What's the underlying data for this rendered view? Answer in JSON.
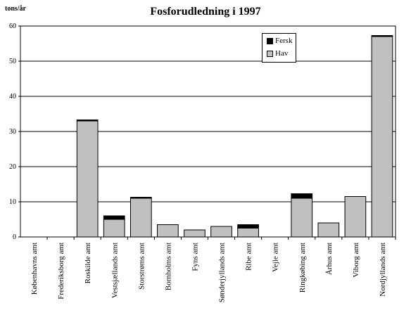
{
  "chart_data": {
    "type": "bar",
    "stacked": true,
    "title": "Fosforudledning i 1997",
    "ylabel": "tons/år",
    "xlabel": "",
    "ylim": [
      0,
      60
    ],
    "yticks": [
      0,
      10,
      20,
      30,
      40,
      50,
      60
    ],
    "grid": true,
    "legend_position": "top-right",
    "categories": [
      "Københavns amt",
      "Frederiksborg amt",
      "Roskilde amt",
      "Vestsjællands amt",
      "Storstrøms amt",
      "Bornholms amt",
      "Fyns amt",
      "Sønderjyllands amt",
      "Ribe amt",
      "Vejle amt",
      "Ringkøbing amt",
      "Århus amt",
      "Viborg amt",
      "Nordjyllands amt"
    ],
    "series": [
      {
        "name": "Hav",
        "color": "#c0c0c0",
        "values": [
          0,
          0,
          33,
          5,
          11,
          3.5,
          2,
          3,
          2.5,
          0,
          11,
          4,
          11.5,
          57
        ]
      },
      {
        "name": "Fersk",
        "color": "#000000",
        "values": [
          0,
          0,
          0.3,
          1,
          0.3,
          0,
          0,
          0,
          1,
          0,
          1.3,
          0,
          0,
          0.3
        ]
      }
    ]
  }
}
